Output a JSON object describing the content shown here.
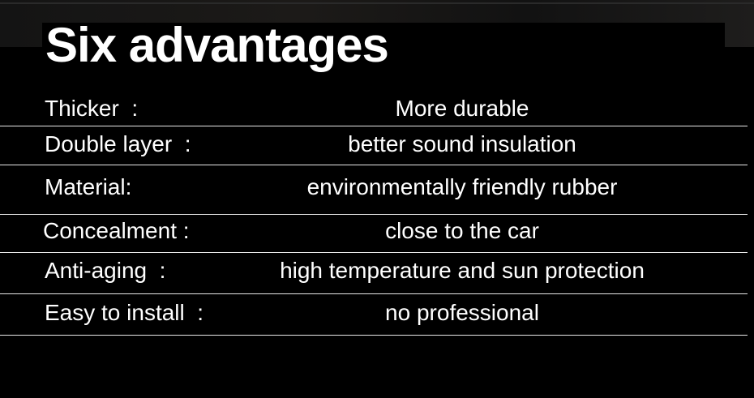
{
  "title": "Six advantages",
  "rows": [
    {
      "label": "Thicker  :",
      "value": "More durable"
    },
    {
      "label": "Double layer  :",
      "value": "better sound insulation"
    },
    {
      "label": "Material:",
      "value": "environmentally friendly rubber"
    },
    {
      "label": "Concealment :",
      "value": "close to the car"
    },
    {
      "label": "Anti-aging  :",
      "value": "high temperature and sun protection"
    },
    {
      "label": "Easy to install  :",
      "value": "no professional"
    }
  ]
}
